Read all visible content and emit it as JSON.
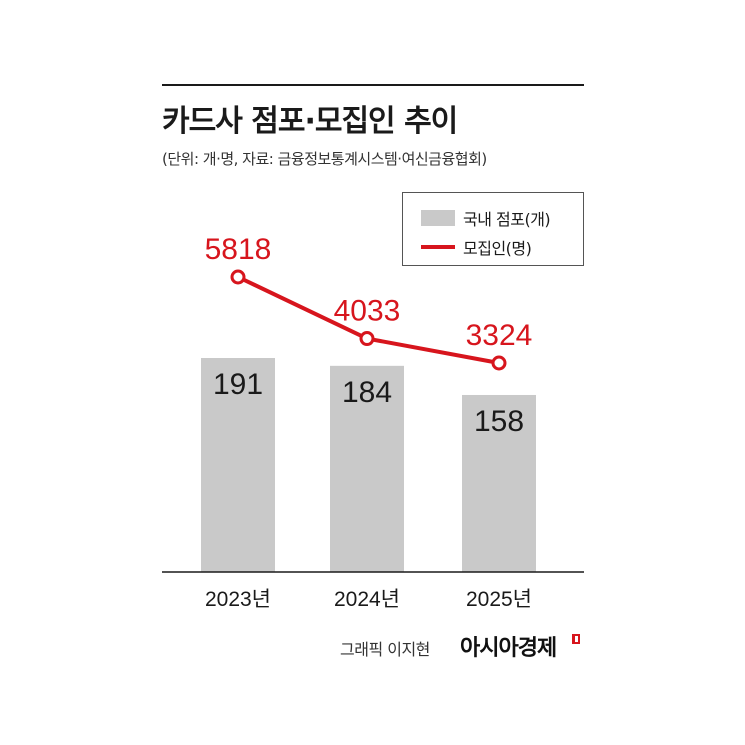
{
  "header": {
    "title": "카드사 점포·모집인 추이",
    "subtitle": "(단위: 개·명, 자료: 금융정보통계시스템·여신금융협회)"
  },
  "legend": {
    "bar_label": "국내 점포(개)",
    "line_label": "모집인(명)"
  },
  "footer": {
    "credit": "그래픽 이지현",
    "brand": "아시아경제"
  },
  "colors": {
    "bar": "#c9c9c9",
    "line": "#d7151d",
    "axis": "#1a1a1a"
  },
  "chart_data": {
    "type": "bar",
    "categories": [
      "2023년",
      "2024년",
      "2025년"
    ],
    "series": [
      {
        "name": "국내 점포(개)",
        "type": "bar",
        "values": [
          191,
          184,
          158
        ]
      },
      {
        "name": "모집인(명)",
        "type": "line",
        "values": [
          5818,
          4033,
          3324
        ]
      }
    ],
    "title": "카드사 점포·모집인 추이",
    "subtitle": "(단위: 개·명, 자료: 금융정보통계시스템·여신금융협회)",
    "legend": "top-right",
    "grid": false
  }
}
